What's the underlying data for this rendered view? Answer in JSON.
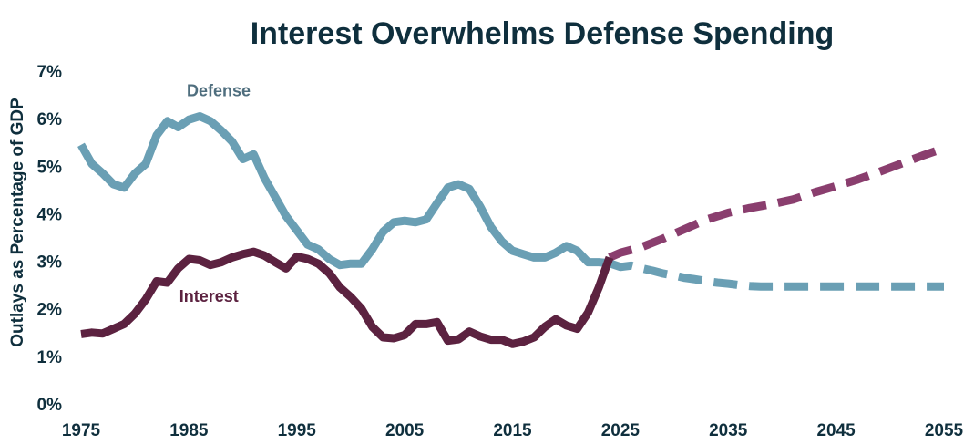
{
  "chart_data": {
    "type": "line",
    "title": "Interest Overwhelms Defense Spending",
    "xlabel": "",
    "ylabel": "Outlays as Percentage of GDP",
    "xlim": [
      1975,
      2055
    ],
    "ylim": [
      0,
      7
    ],
    "xticks": [
      {
        "value": 1975,
        "label": "1975"
      },
      {
        "value": 1985,
        "label": "1985"
      },
      {
        "value": 1995,
        "label": "1995"
      },
      {
        "value": 2005,
        "label": "2005"
      },
      {
        "value": 2015,
        "label": "2015"
      },
      {
        "value": 2025,
        "label": "2025"
      },
      {
        "value": 2035,
        "label": "2035"
      },
      {
        "value": 2045,
        "label": "2045"
      },
      {
        "value": 2055,
        "label": "2055"
      }
    ],
    "yticks": [
      {
        "value": 0,
        "label": "0%"
      },
      {
        "value": 1,
        "label": "1%"
      },
      {
        "value": 2,
        "label": "2%"
      },
      {
        "value": 3,
        "label": "3%"
      },
      {
        "value": 4,
        "label": "4%"
      },
      {
        "value": 5,
        "label": "5%"
      },
      {
        "value": 6,
        "label": "6%"
      },
      {
        "value": 7,
        "label": "7%"
      }
    ],
    "grid": false,
    "series": [
      {
        "name": "Defense",
        "label": "Defense",
        "color": "#6a9fb4",
        "label_color": "#4f6e7e",
        "label_at": [
          1984.8,
          6.47
        ],
        "historical": {
          "x": [
            1975,
            1976,
            1977,
            1978,
            1979,
            1980,
            1981,
            1982,
            1983,
            1984,
            1985,
            1986,
            1987,
            1988,
            1989,
            1990,
            1991,
            1992,
            1993,
            1994,
            1995,
            1996,
            1997,
            1998,
            1999,
            2000,
            2001,
            2002,
            2003,
            2004,
            2005,
            2006,
            2007,
            2008,
            2009,
            2010,
            2011,
            2012,
            2013,
            2014,
            2015,
            2016,
            2017,
            2018,
            2019,
            2020,
            2021,
            2022,
            2023,
            2024
          ],
          "y": [
            5.45,
            5.05,
            4.85,
            4.62,
            4.55,
            4.85,
            5.05,
            5.65,
            5.95,
            5.82,
            5.98,
            6.05,
            5.95,
            5.75,
            5.52,
            5.15,
            5.25,
            4.75,
            4.35,
            3.95,
            3.65,
            3.35,
            3.25,
            3.05,
            2.92,
            2.95,
            2.95,
            3.25,
            3.62,
            3.82,
            3.85,
            3.82,
            3.88,
            4.22,
            4.55,
            4.62,
            4.52,
            4.15,
            3.72,
            3.42,
            3.22,
            3.15,
            3.08,
            3.08,
            3.18,
            3.32,
            3.22,
            2.98,
            2.98,
            2.96
          ]
        },
        "projected": {
          "x": [
            2024,
            2025,
            2026,
            2027,
            2028,
            2029,
            2030,
            2031,
            2032,
            2033,
            2034,
            2035,
            2036,
            2037,
            2038,
            2039,
            2040,
            2045,
            2050,
            2055
          ],
          "y": [
            2.96,
            2.88,
            2.91,
            2.85,
            2.8,
            2.74,
            2.7,
            2.65,
            2.62,
            2.58,
            2.55,
            2.53,
            2.5,
            2.48,
            2.47,
            2.47,
            2.47,
            2.47,
            2.47,
            2.47
          ]
        }
      },
      {
        "name": "Interest",
        "label": "Interest",
        "color": "#5c2240",
        "projected_color": "#8a3e6e",
        "label_color": "#5c2240",
        "label_at": [
          1984.1,
          2.15
        ],
        "historical": {
          "x": [
            1975,
            1976,
            1977,
            1978,
            1979,
            1980,
            1981,
            1982,
            1983,
            1984,
            1985,
            1986,
            1987,
            1988,
            1989,
            1990,
            1991,
            1992,
            1993,
            1994,
            1995,
            1996,
            1997,
            1998,
            1999,
            2000,
            2001,
            2002,
            2003,
            2004,
            2005,
            2006,
            2007,
            2008,
            2009,
            2010,
            2011,
            2012,
            2013,
            2014,
            2015,
            2016,
            2017,
            2018,
            2019,
            2020,
            2021,
            2022,
            2023,
            2024
          ],
          "y": [
            1.47,
            1.5,
            1.48,
            1.58,
            1.68,
            1.9,
            2.2,
            2.58,
            2.55,
            2.85,
            3.05,
            3.02,
            2.92,
            2.98,
            3.08,
            3.15,
            3.2,
            3.12,
            2.98,
            2.85,
            3.1,
            3.05,
            2.95,
            2.75,
            2.45,
            2.25,
            2.0,
            1.62,
            1.4,
            1.38,
            1.45,
            1.68,
            1.68,
            1.72,
            1.33,
            1.36,
            1.52,
            1.42,
            1.35,
            1.35,
            1.26,
            1.31,
            1.4,
            1.62,
            1.78,
            1.65,
            1.58,
            1.92,
            2.45,
            3.08
          ]
        },
        "projected": {
          "x": [
            2024,
            2025,
            2027,
            2029,
            2031,
            2033,
            2035,
            2037,
            2039,
            2041,
            2043,
            2045,
            2047,
            2049,
            2051,
            2053,
            2055
          ],
          "y": [
            3.08,
            3.18,
            3.3,
            3.48,
            3.68,
            3.88,
            4.02,
            4.12,
            4.2,
            4.3,
            4.45,
            4.58,
            4.72,
            4.88,
            5.05,
            5.22,
            5.38
          ]
        }
      }
    ]
  }
}
